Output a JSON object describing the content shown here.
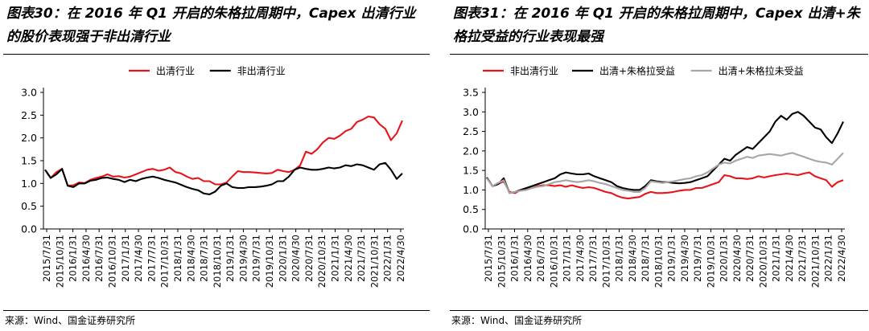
{
  "charts": [
    {
      "panel": "left",
      "title": "图表30：在 2016 年 Q1 开启的朱格拉周期中，Capex 出清行业的股价表现强于非出清行业",
      "source": "来源：Wind、国金证券研究所",
      "chart_data": {
        "type": "line",
        "title": "图表30：在 2016 年 Q1 开启的朱格拉周期中，Capex 出清行业的股价表现强于非出清行业",
        "xlabel": "",
        "ylabel": "",
        "ylim": [
          0,
          3.0
        ],
        "yticks": [
          "0.0",
          "0.5",
          "1.0",
          "1.5",
          "2.0",
          "2.5",
          "3.0"
        ],
        "x_tick_labels": [
          "2015/7/31",
          "2015/10/31",
          "2016/1/31",
          "2016/4/30",
          "2016/7/31",
          "2016/10/31",
          "2017/1/31",
          "2017/4/30",
          "2017/7/31",
          "2017/10/31",
          "2018/1/31",
          "2018/4/30",
          "2018/7/31",
          "2018/10/31",
          "2019/1/31",
          "2019/4/30",
          "2019/7/31",
          "2019/10/31",
          "2020/1/31",
          "2020/4/30",
          "2020/7/31",
          "2020/10/31",
          "2021/1/31",
          "2021/4/30",
          "2021/7/31",
          "2021/10/31",
          "2022/1/31",
          "2022/4/30"
        ],
        "legend_position": "top-center",
        "grid": false,
        "series": [
          {
            "name": "出清行业",
            "color": "#e8141b",
            "values": [
              1.3,
              1.12,
              1.25,
              1.32,
              0.95,
              0.96,
              1.02,
              1.01,
              1.08,
              1.12,
              1.15,
              1.2,
              1.15,
              1.16,
              1.13,
              1.15,
              1.2,
              1.25,
              1.3,
              1.32,
              1.28,
              1.3,
              1.35,
              1.25,
              1.22,
              1.15,
              1.1,
              1.12,
              1.05,
              1.05,
              0.98,
              0.98,
              1.02,
              1.15,
              1.27,
              1.25,
              1.25,
              1.24,
              1.23,
              1.22,
              1.23,
              1.3,
              1.27,
              1.25,
              1.3,
              1.4,
              1.7,
              1.65,
              1.75,
              1.9,
              2.0,
              1.98,
              2.05,
              2.15,
              2.2,
              2.35,
              2.4,
              2.47,
              2.45,
              2.3,
              2.2,
              1.95,
              2.1,
              2.38
            ]
          },
          {
            "name": "非出清行业",
            "color": "#000000",
            "values": [
              1.3,
              1.12,
              1.2,
              1.32,
              0.95,
              0.92,
              1.0,
              1.0,
              1.06,
              1.08,
              1.12,
              1.13,
              1.1,
              1.08,
              1.03,
              1.08,
              1.05,
              1.1,
              1.13,
              1.15,
              1.12,
              1.08,
              1.05,
              1.02,
              0.97,
              0.92,
              0.88,
              0.85,
              0.78,
              0.76,
              0.82,
              0.95,
              1.0,
              0.92,
              0.9,
              0.9,
              0.92,
              0.92,
              0.93,
              0.95,
              0.98,
              1.05,
              1.05,
              1.15,
              1.3,
              1.35,
              1.32,
              1.3,
              1.3,
              1.32,
              1.35,
              1.33,
              1.35,
              1.4,
              1.38,
              1.42,
              1.4,
              1.35,
              1.3,
              1.42,
              1.45,
              1.3,
              1.1,
              1.22
            ]
          }
        ]
      }
    },
    {
      "panel": "right",
      "title": "图表31：在 2016 年 Q1 开启的朱格拉周期中，Capex 出清+朱格拉受益的行业表现最强",
      "source": "来源：Wind、国金证券研究所",
      "chart_data": {
        "type": "line",
        "title": "图表31：在 2016 年 Q1 开启的朱格拉周期中，Capex 出清+朱格拉受益的行业表现最强",
        "xlabel": "",
        "ylabel": "",
        "ylim": [
          0,
          3.5
        ],
        "yticks": [
          "0.0",
          "0.5",
          "1.0",
          "1.5",
          "2.0",
          "2.5",
          "3.0",
          "3.5"
        ],
        "x_tick_labels": [
          "2015/7/31",
          "2015/10/31",
          "2016/1/31",
          "2016/4/30",
          "2016/7/31",
          "2016/10/31",
          "2017/1/31",
          "2017/4/30",
          "2017/7/31",
          "2017/10/31",
          "2018/1/31",
          "2018/4/30",
          "2018/7/31",
          "2018/10/31",
          "2019/1/31",
          "2019/4/30",
          "2019/7/31",
          "2019/10/31",
          "2020/1/31",
          "2020/4/30",
          "2020/7/31",
          "2020/10/31",
          "2021/1/31",
          "2021/4/30",
          "2021/7/31",
          "2021/10/31",
          "2022/1/31",
          "2022/4/30"
        ],
        "legend_position": "top-center",
        "grid": false,
        "series": [
          {
            "name": "非出清行业",
            "color": "#e8141b",
            "values": [
              1.32,
              1.1,
              1.15,
              1.22,
              0.95,
              0.92,
              1.0,
              1.02,
              1.05,
              1.1,
              1.12,
              1.12,
              1.1,
              1.12,
              1.08,
              1.12,
              1.08,
              1.05,
              1.07,
              1.05,
              1.0,
              0.95,
              0.92,
              0.85,
              0.8,
              0.78,
              0.8,
              0.82,
              0.9,
              0.95,
              0.92,
              0.92,
              0.93,
              0.95,
              0.98,
              1.0,
              1.0,
              1.05,
              1.05,
              1.1,
              1.15,
              1.2,
              1.38,
              1.35,
              1.3,
              1.3,
              1.28,
              1.3,
              1.35,
              1.32,
              1.35,
              1.38,
              1.4,
              1.42,
              1.4,
              1.38,
              1.42,
              1.45,
              1.35,
              1.3,
              1.25,
              1.08,
              1.2,
              1.25
            ]
          },
          {
            "name": "出清+朱格拉受益",
            "color": "#000000",
            "values": [
              1.32,
              1.1,
              1.15,
              1.3,
              0.92,
              0.95,
              1.0,
              1.05,
              1.1,
              1.15,
              1.2,
              1.25,
              1.3,
              1.4,
              1.45,
              1.42,
              1.4,
              1.4,
              1.42,
              1.35,
              1.3,
              1.25,
              1.2,
              1.1,
              1.05,
              1.02,
              1.0,
              1.0,
              1.1,
              1.25,
              1.22,
              1.2,
              1.2,
              1.18,
              1.17,
              1.18,
              1.2,
              1.25,
              1.3,
              1.35,
              1.5,
              1.65,
              1.8,
              1.75,
              1.9,
              2.0,
              2.1,
              2.05,
              2.2,
              2.35,
              2.5,
              2.75,
              2.9,
              2.8,
              2.95,
              3.0,
              2.9,
              2.75,
              2.6,
              2.55,
              2.35,
              2.2,
              2.45,
              2.75
            ]
          },
          {
            "name": "出清+朱格拉未受益",
            "color": "#a6a6a6",
            "values": [
              1.3,
              1.1,
              1.18,
              1.25,
              0.92,
              0.95,
              0.98,
              1.0,
              1.05,
              1.08,
              1.1,
              1.15,
              1.2,
              1.22,
              1.25,
              1.22,
              1.2,
              1.22,
              1.25,
              1.22,
              1.18,
              1.15,
              1.1,
              1.05,
              1.0,
              0.98,
              0.95,
              0.95,
              1.05,
              1.22,
              1.2,
              1.18,
              1.2,
              1.22,
              1.25,
              1.28,
              1.3,
              1.35,
              1.38,
              1.45,
              1.55,
              1.65,
              1.7,
              1.68,
              1.75,
              1.8,
              1.85,
              1.82,
              1.88,
              1.9,
              1.92,
              1.9,
              1.88,
              1.92,
              1.95,
              1.9,
              1.85,
              1.8,
              1.75,
              1.72,
              1.7,
              1.65,
              1.8,
              1.95
            ]
          }
        ]
      }
    }
  ]
}
